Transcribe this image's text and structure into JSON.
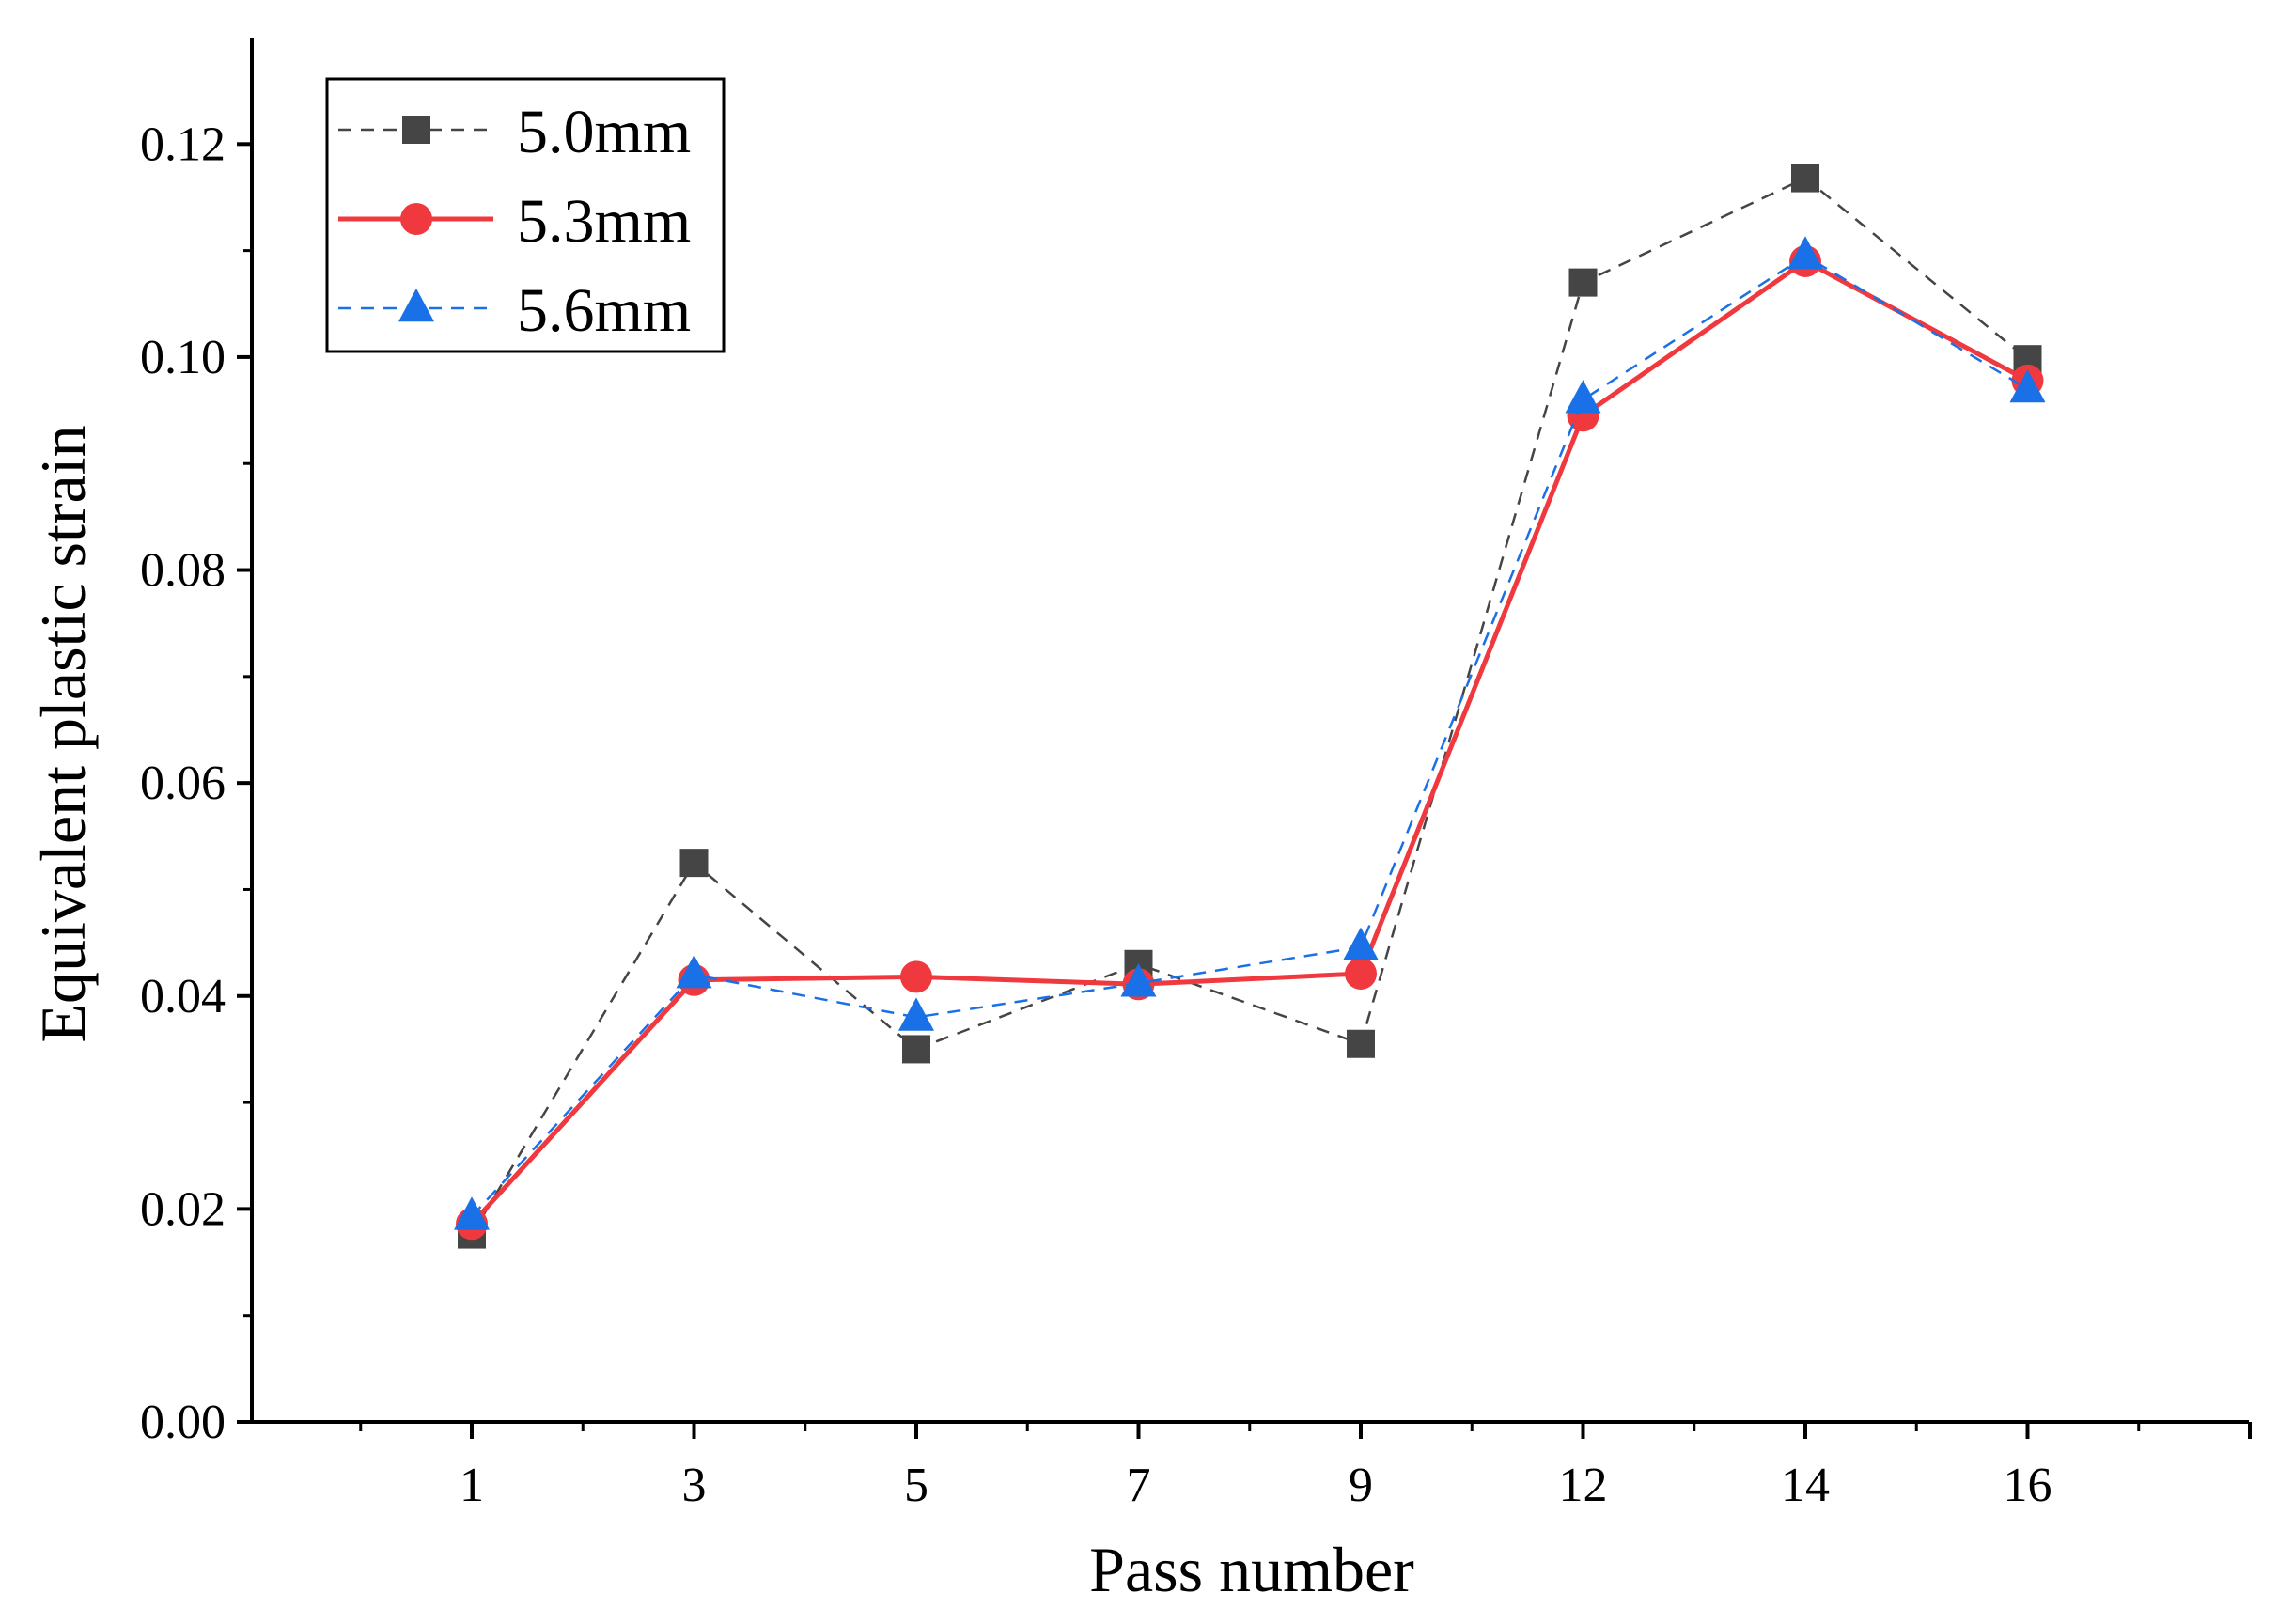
{
  "chart_data": {
    "type": "line",
    "title": "",
    "xlabel": "Pass number",
    "ylabel": "Equivalent plastic strain",
    "categories": [
      "1",
      "3",
      "5",
      "7",
      "9",
      "12",
      "14",
      "16"
    ],
    "ylim": [
      0,
      0.13
    ],
    "yticks": [
      "0.00",
      "0.02",
      "0.04",
      "0.06",
      "0.08",
      "0.10",
      "0.12"
    ],
    "ytick_values": [
      0,
      0.02,
      0.04,
      0.06,
      0.08,
      0.1,
      0.12
    ],
    "grid": false,
    "legend_position": "top-left",
    "series": [
      {
        "name": "5.0mm",
        "values": [
          0.0176,
          0.0525,
          0.035,
          0.043,
          0.0355,
          0.107,
          0.1168,
          0.0998
        ],
        "color": "#454545",
        "marker": "square",
        "line": "dashed"
      },
      {
        "name": "5.3mm",
        "values": [
          0.0186,
          0.0415,
          0.0418,
          0.0411,
          0.0421,
          0.0945,
          0.109,
          0.0978
        ],
        "color": "#f0393e",
        "marker": "circle",
        "line": "solid"
      },
      {
        "name": "5.6mm",
        "values": [
          0.0193,
          0.042,
          0.038,
          0.0412,
          0.0446,
          0.096,
          0.1095,
          0.097
        ],
        "color": "#1a70e6",
        "marker": "triangle",
        "line": "dashed"
      }
    ]
  }
}
